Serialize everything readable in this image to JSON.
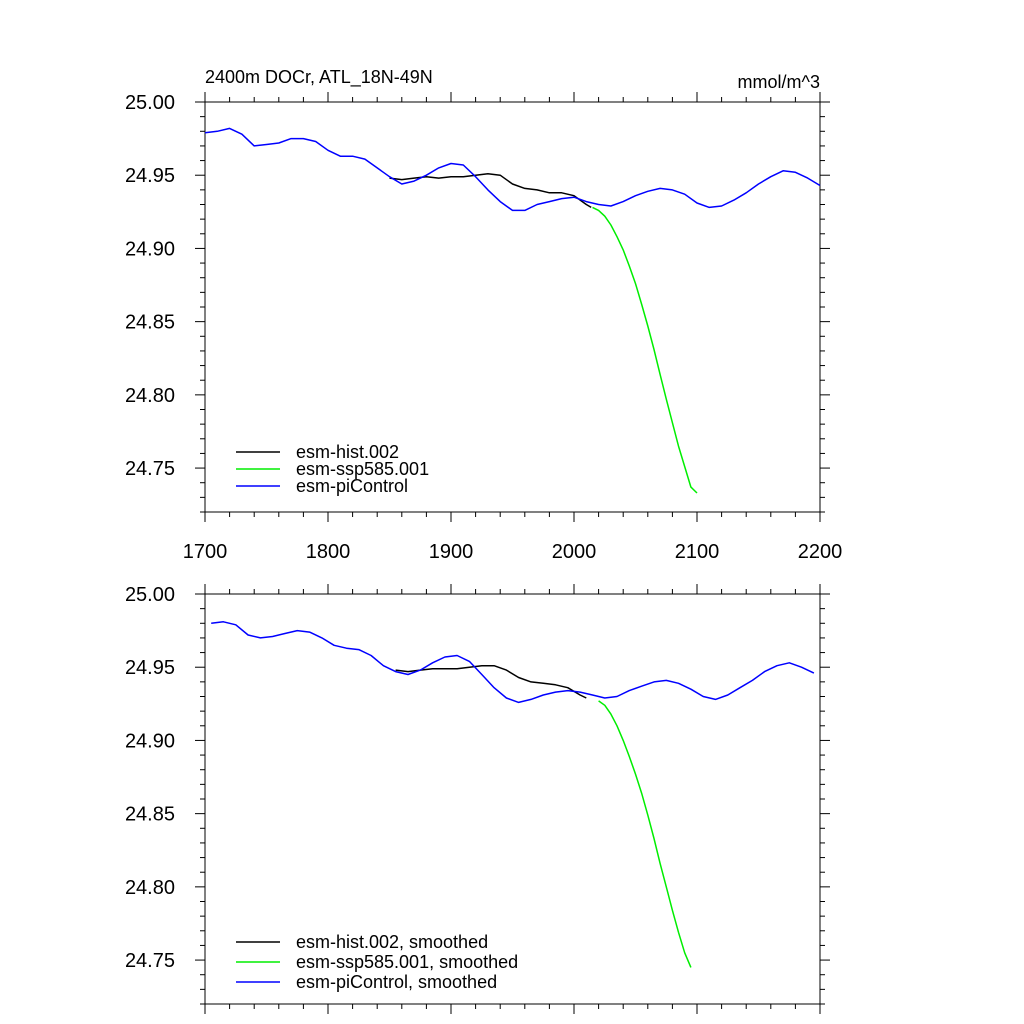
{
  "chart_data": [
    {
      "type": "line",
      "title": "2400m DOCr, ATL_18N-49N",
      "units_label": "mmol/m^3",
      "xlabel": "",
      "ylabel": "",
      "xlim": [
        1700,
        2200
      ],
      "ylim": [
        24.72,
        25.0
      ],
      "x_ticks": [
        "1700",
        "1800",
        "1900",
        "2000",
        "2100",
        "2200"
      ],
      "y_ticks": [
        "25.00",
        "24.95",
        "24.90",
        "24.85",
        "24.80",
        "24.75"
      ],
      "legend_position": "bottom-left",
      "grid": false,
      "series": [
        {
          "name": "esm-hist.002",
          "color": "#000000",
          "x": [
            1850,
            1860,
            1870,
            1880,
            1890,
            1900,
            1910,
            1920,
            1930,
            1940,
            1950,
            1960,
            1970,
            1980,
            1990,
            2000,
            2010,
            2014
          ],
          "y": [
            24.948,
            24.947,
            24.948,
            24.949,
            24.948,
            24.949,
            24.949,
            24.95,
            24.951,
            24.95,
            24.944,
            24.941,
            24.94,
            24.938,
            24.938,
            24.936,
            24.93,
            24.928
          ]
        },
        {
          "name": "esm-ssp585.001",
          "color": "#00ee00",
          "x": [
            2015,
            2020,
            2025,
            2030,
            2035,
            2040,
            2045,
            2050,
            2055,
            2060,
            2065,
            2070,
            2075,
            2080,
            2085,
            2090,
            2095,
            2100
          ],
          "y": [
            24.928,
            24.926,
            24.922,
            24.916,
            24.908,
            24.899,
            24.888,
            24.876,
            24.862,
            24.847,
            24.831,
            24.814,
            24.797,
            24.781,
            24.765,
            24.751,
            24.737,
            24.733
          ]
        },
        {
          "name": "esm-piControl",
          "color": "#0000ff",
          "x": [
            1700,
            1710,
            1720,
            1730,
            1740,
            1750,
            1760,
            1770,
            1780,
            1790,
            1800,
            1810,
            1820,
            1830,
            1840,
            1850,
            1860,
            1870,
            1880,
            1890,
            1900,
            1910,
            1920,
            1930,
            1940,
            1950,
            1960,
            1970,
            1980,
            1990,
            2000,
            2010,
            2020,
            2030,
            2040,
            2050,
            2060,
            2070,
            2080,
            2090,
            2100,
            2110,
            2120,
            2130,
            2140,
            2150,
            2160,
            2170,
            2180,
            2190,
            2200
          ],
          "y": [
            24.979,
            24.98,
            24.982,
            24.978,
            24.97,
            24.971,
            24.972,
            24.975,
            24.975,
            24.973,
            24.967,
            24.963,
            24.963,
            24.961,
            24.955,
            24.949,
            24.944,
            24.946,
            24.95,
            24.955,
            24.958,
            24.957,
            24.949,
            24.94,
            24.932,
            24.926,
            24.926,
            24.93,
            24.932,
            24.934,
            24.935,
            24.932,
            24.93,
            24.929,
            24.932,
            24.936,
            24.939,
            24.941,
            24.94,
            24.937,
            24.931,
            24.928,
            24.929,
            24.933,
            24.938,
            24.944,
            24.949,
            24.953,
            24.952,
            24.948,
            24.943
          ]
        }
      ]
    },
    {
      "type": "line",
      "title": "",
      "xlabel": "",
      "ylabel": "",
      "xlim": [
        1700,
        2200
      ],
      "ylim": [
        24.72,
        25.0
      ],
      "y_ticks": [
        "25.00",
        "24.95",
        "24.90",
        "24.85",
        "24.80",
        "24.75"
      ],
      "legend_position": "bottom-left",
      "grid": false,
      "series": [
        {
          "name": "esm-hist.002, smoothed",
          "color": "#000000",
          "x": [
            1855,
            1865,
            1875,
            1885,
            1895,
            1905,
            1915,
            1925,
            1935,
            1945,
            1955,
            1965,
            1975,
            1985,
            1995,
            2005,
            2010
          ],
          "y": [
            24.948,
            24.947,
            24.948,
            24.949,
            24.949,
            24.949,
            24.95,
            24.951,
            24.951,
            24.948,
            24.943,
            24.94,
            24.939,
            24.938,
            24.936,
            24.931,
            24.929
          ]
        },
        {
          "name": "esm-ssp585.001, smoothed",
          "color": "#00ee00",
          "x": [
            2020,
            2025,
            2030,
            2035,
            2040,
            2045,
            2050,
            2055,
            2060,
            2065,
            2070,
            2075,
            2080,
            2085,
            2090,
            2095
          ],
          "y": [
            24.927,
            24.924,
            24.918,
            24.91,
            24.9,
            24.889,
            24.877,
            24.864,
            24.849,
            24.833,
            24.816,
            24.8,
            24.784,
            24.769,
            24.755,
            24.745
          ]
        },
        {
          "name": "esm-piControl, smoothed",
          "color": "#0000ff",
          "x": [
            1705,
            1715,
            1725,
            1735,
            1745,
            1755,
            1765,
            1775,
            1785,
            1795,
            1805,
            1815,
            1825,
            1835,
            1845,
            1855,
            1865,
            1875,
            1885,
            1895,
            1905,
            1915,
            1925,
            1935,
            1945,
            1955,
            1965,
            1975,
            1985,
            1995,
            2005,
            2015,
            2025,
            2035,
            2045,
            2055,
            2065,
            2075,
            2085,
            2095,
            2105,
            2115,
            2125,
            2135,
            2145,
            2155,
            2165,
            2175,
            2185,
            2195
          ],
          "y": [
            24.98,
            24.981,
            24.979,
            24.972,
            24.97,
            24.971,
            24.973,
            24.975,
            24.974,
            24.97,
            24.965,
            24.963,
            24.962,
            24.958,
            24.951,
            24.947,
            24.945,
            24.948,
            24.953,
            24.957,
            24.958,
            24.954,
            24.945,
            24.936,
            24.929,
            24.926,
            24.928,
            24.931,
            24.933,
            24.934,
            24.933,
            24.931,
            24.929,
            24.93,
            24.934,
            24.937,
            24.94,
            24.941,
            24.939,
            24.935,
            24.93,
            24.928,
            24.931,
            24.936,
            24.941,
            24.947,
            24.951,
            24.953,
            24.95,
            24.946
          ]
        }
      ]
    }
  ]
}
